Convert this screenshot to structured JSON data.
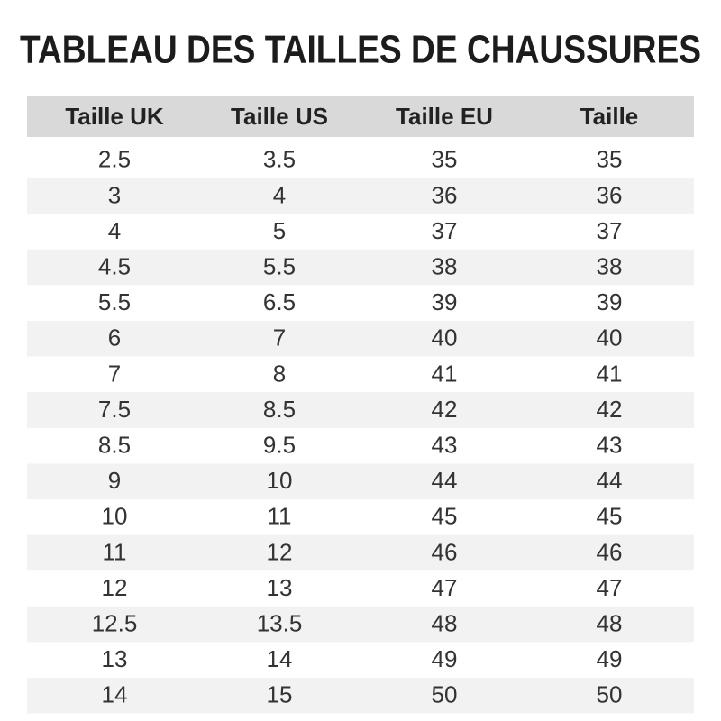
{
  "header": {
    "title": "TABLEAU DES TAILLES DE CHAUSSURES"
  },
  "table": {
    "columns": [
      "Taille UK",
      "Taille US",
      "Taille EU",
      "Taille"
    ],
    "rows": [
      [
        "2.5",
        "3.5",
        "35",
        "35"
      ],
      [
        "3",
        "4",
        "36",
        "36"
      ],
      [
        "4",
        "5",
        "37",
        "37"
      ],
      [
        "4.5",
        "5.5",
        "38",
        "38"
      ],
      [
        "5.5",
        "6.5",
        "39",
        "39"
      ],
      [
        "6",
        "7",
        "40",
        "40"
      ],
      [
        "7",
        "8",
        "41",
        "41"
      ],
      [
        "7.5",
        "8.5",
        "42",
        "42"
      ],
      [
        "8.5",
        "9.5",
        "43",
        "43"
      ],
      [
        "9",
        "10",
        "44",
        "44"
      ],
      [
        "10",
        "11",
        "45",
        "45"
      ],
      [
        "11",
        "12",
        "46",
        "46"
      ],
      [
        "12",
        "13",
        "47",
        "47"
      ],
      [
        "12.5",
        "13.5",
        "48",
        "48"
      ],
      [
        "13",
        "14",
        "49",
        "49"
      ],
      [
        "14",
        "15",
        "50",
        "50"
      ]
    ]
  }
}
